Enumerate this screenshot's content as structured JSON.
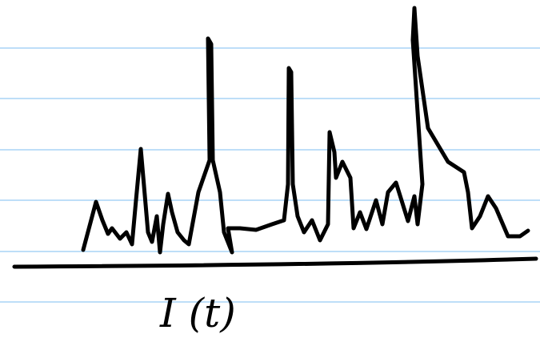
{
  "axis_label": "I (t)"
}
